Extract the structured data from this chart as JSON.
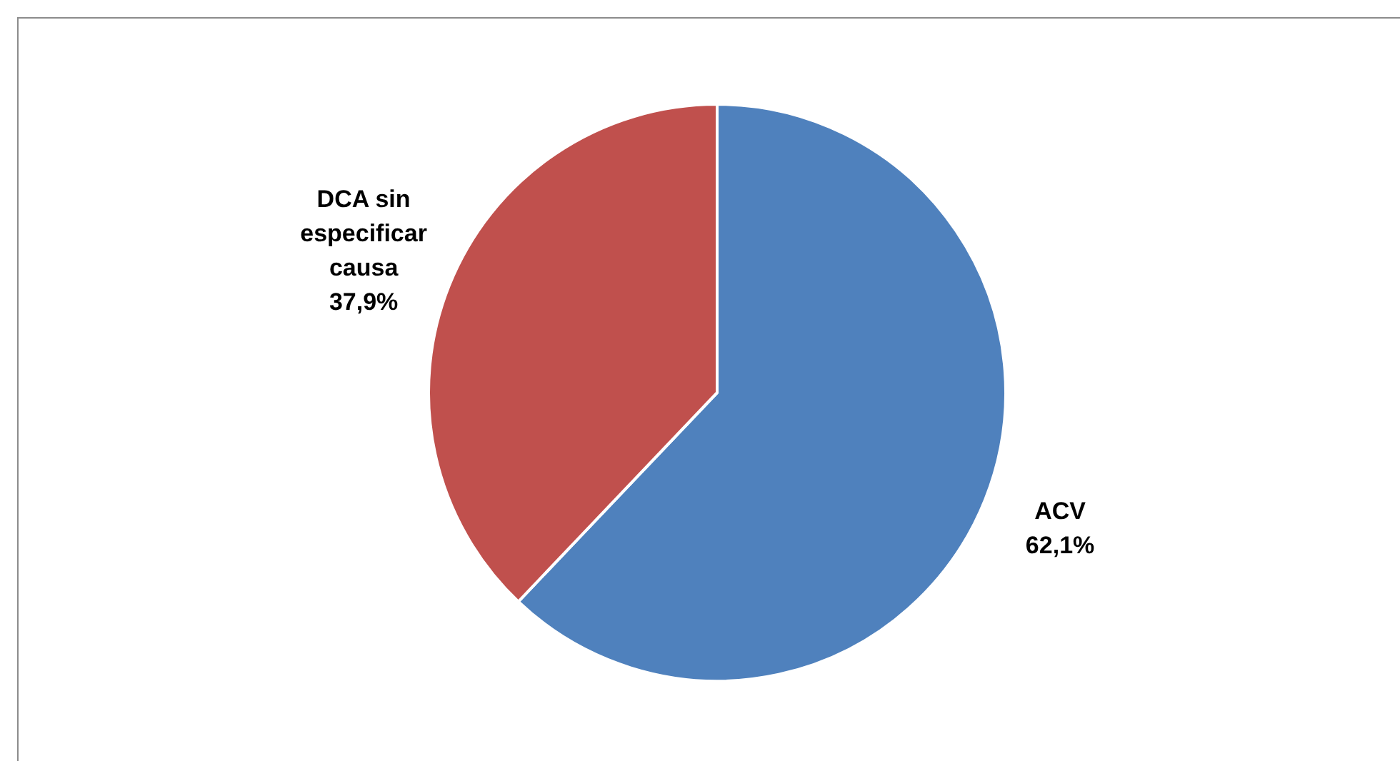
{
  "chart_data": {
    "type": "pie",
    "categories": [
      "ACV",
      "DCA sin especificar causa"
    ],
    "values": [
      62.1,
      37.9
    ],
    "colors": [
      "#4f81bd",
      "#c0504d"
    ],
    "value_labels": [
      "62,1%",
      "37,9%"
    ],
    "legend": false
  }
}
